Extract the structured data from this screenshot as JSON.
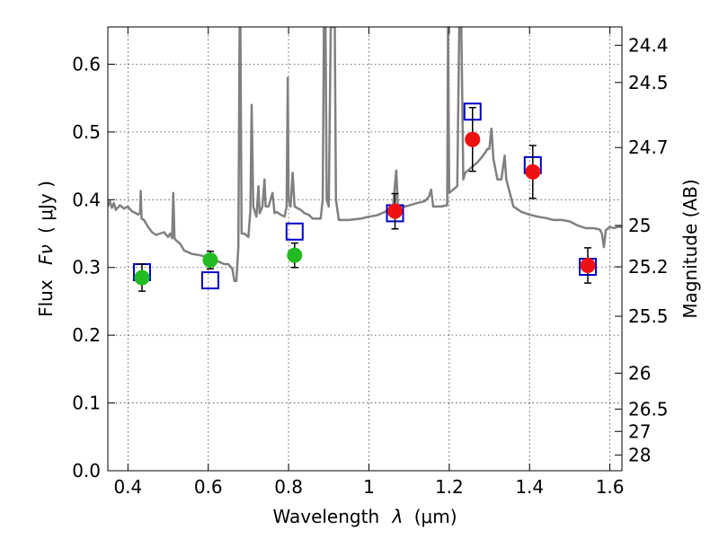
{
  "chart_data": {
    "type": "scatter",
    "title": "",
    "xlabel_text": "Wavelength",
    "xlabel_symbol": "λ",
    "xlabel_unit": "(μm)",
    "ylabel_text": "Flux",
    "ylabel_symbol": "Fν",
    "ylabel_unit": "( μJy )",
    "y2label": "Magnitude (AB)",
    "xlim": [
      0.35,
      1.63
    ],
    "ylim": [
      0.0,
      0.655
    ],
    "xticks": [
      0.4,
      0.6,
      0.8,
      1.0,
      1.2,
      1.4,
      1.6
    ],
    "xtick_labels": [
      "0.4",
      "0.6",
      "0.8",
      "1",
      "1.2",
      "1.4",
      "1.6"
    ],
    "yticks": [
      0.0,
      0.1,
      0.2,
      0.3,
      0.4,
      0.5,
      0.6
    ],
    "ytick_labels": [
      "0.0",
      "0.1",
      "0.2",
      "0.3",
      "0.4",
      "0.5",
      "0.6"
    ],
    "y2ticks": [
      {
        "label": "24.4",
        "flux": 0.628
      },
      {
        "label": "24.5",
        "flux": 0.573
      },
      {
        "label": "24.7",
        "flux": 0.477
      },
      {
        "label": "25",
        "flux": 0.362
      },
      {
        "label": "25.2",
        "flux": 0.301
      },
      {
        "label": "25.5",
        "flux": 0.228
      },
      {
        "label": "26",
        "flux": 0.144
      },
      {
        "label": "26.5",
        "flux": 0.091
      },
      {
        "label": "27",
        "flux": 0.058
      },
      {
        "label": "28",
        "flux": 0.023
      }
    ],
    "grid": true,
    "series": [
      {
        "role": "spectrum",
        "color": "#808080",
        "points": [
          [
            0.35,
            0.39
          ],
          [
            0.355,
            0.398
          ],
          [
            0.36,
            0.388
          ],
          [
            0.365,
            0.395
          ],
          [
            0.37,
            0.385
          ],
          [
            0.38,
            0.392
          ],
          [
            0.39,
            0.387
          ],
          [
            0.4,
            0.39
          ],
          [
            0.41,
            0.383
          ],
          [
            0.42,
            0.38
          ],
          [
            0.425,
            0.378
          ],
          [
            0.43,
            0.38
          ],
          [
            0.432,
            0.413
          ],
          [
            0.434,
            0.372
          ],
          [
            0.44,
            0.37
          ],
          [
            0.45,
            0.36
          ],
          [
            0.46,
            0.352
          ],
          [
            0.47,
            0.348
          ],
          [
            0.48,
            0.35
          ],
          [
            0.49,
            0.352
          ],
          [
            0.5,
            0.345
          ],
          [
            0.505,
            0.35
          ],
          [
            0.51,
            0.343
          ],
          [
            0.513,
            0.41
          ],
          [
            0.516,
            0.343
          ],
          [
            0.52,
            0.34
          ],
          [
            0.53,
            0.335
          ],
          [
            0.54,
            0.325
          ],
          [
            0.56,
            0.32
          ],
          [
            0.58,
            0.318
          ],
          [
            0.6,
            0.315
          ],
          [
            0.62,
            0.31
          ],
          [
            0.64,
            0.305
          ],
          [
            0.65,
            0.305
          ],
          [
            0.66,
            0.298
          ],
          [
            0.665,
            0.28
          ],
          [
            0.67,
            0.28
          ],
          [
            0.675,
            0.33
          ],
          [
            0.678,
            0.655
          ],
          [
            0.68,
            0.655
          ],
          [
            0.683,
            0.35
          ],
          [
            0.69,
            0.35
          ],
          [
            0.7,
            0.345
          ],
          [
            0.705,
            0.385
          ],
          [
            0.708,
            0.54
          ],
          [
            0.712,
            0.39
          ],
          [
            0.72,
            0.375
          ],
          [
            0.725,
            0.42
          ],
          [
            0.728,
            0.38
          ],
          [
            0.735,
            0.39
          ],
          [
            0.74,
            0.43
          ],
          [
            0.743,
            0.39
          ],
          [
            0.75,
            0.39
          ],
          [
            0.76,
            0.41
          ],
          [
            0.765,
            0.38
          ],
          [
            0.77,
            0.382
          ],
          [
            0.78,
            0.378
          ],
          [
            0.79,
            0.375
          ],
          [
            0.795,
            0.39
          ],
          [
            0.798,
            0.58
          ],
          [
            0.8,
            0.4
          ],
          [
            0.805,
            0.39
          ],
          [
            0.81,
            0.44
          ],
          [
            0.815,
            0.39
          ],
          [
            0.83,
            0.385
          ],
          [
            0.84,
            0.38
          ],
          [
            0.85,
            0.378
          ],
          [
            0.86,
            0.372
          ],
          [
            0.88,
            0.372
          ],
          [
            0.885,
            0.4
          ],
          [
            0.888,
            0.655
          ],
          [
            0.892,
            0.655
          ],
          [
            0.895,
            0.4
          ],
          [
            0.9,
            0.39
          ],
          [
            0.905,
            0.655
          ],
          [
            0.915,
            0.655
          ],
          [
            0.918,
            0.4
          ],
          [
            0.925,
            0.37
          ],
          [
            0.95,
            0.37
          ],
          [
            0.98,
            0.372
          ],
          [
            1.0,
            0.375
          ],
          [
            1.02,
            0.377
          ],
          [
            1.04,
            0.382
          ],
          [
            1.06,
            0.39
          ],
          [
            1.068,
            0.443
          ],
          [
            1.072,
            0.392
          ],
          [
            1.09,
            0.39
          ],
          [
            1.12,
            0.395
          ],
          [
            1.14,
            0.398
          ],
          [
            1.15,
            0.405
          ],
          [
            1.155,
            0.415
          ],
          [
            1.16,
            0.39
          ],
          [
            1.18,
            0.39
          ],
          [
            1.195,
            0.392
          ],
          [
            1.197,
            0.655
          ],
          [
            1.2,
            0.41
          ],
          [
            1.22,
            0.42
          ],
          [
            1.225,
            0.655
          ],
          [
            1.23,
            0.655
          ],
          [
            1.235,
            0.43
          ],
          [
            1.24,
            0.44
          ],
          [
            1.25,
            0.445
          ],
          [
            1.26,
            0.45
          ],
          [
            1.27,
            0.455
          ],
          [
            1.28,
            0.462
          ],
          [
            1.29,
            0.47
          ],
          [
            1.295,
            0.475
          ],
          [
            1.3,
            0.475
          ],
          [
            1.305,
            0.505
          ],
          [
            1.31,
            0.46
          ],
          [
            1.32,
            0.43
          ],
          [
            1.33,
            0.43
          ],
          [
            1.338,
            0.465
          ],
          [
            1.342,
            0.43
          ],
          [
            1.36,
            0.39
          ],
          [
            1.38,
            0.382
          ],
          [
            1.4,
            0.378
          ],
          [
            1.42,
            0.375
          ],
          [
            1.44,
            0.373
          ],
          [
            1.46,
            0.37
          ],
          [
            1.48,
            0.37
          ],
          [
            1.5,
            0.368
          ],
          [
            1.52,
            0.362
          ],
          [
            1.54,
            0.358
          ],
          [
            1.56,
            0.358
          ],
          [
            1.575,
            0.356
          ],
          [
            1.58,
            0.35
          ],
          [
            1.585,
            0.33
          ],
          [
            1.59,
            0.355
          ],
          [
            1.6,
            0.36
          ],
          [
            1.61,
            0.358
          ],
          [
            1.62,
            0.36
          ],
          [
            1.63,
            0.36
          ]
        ]
      },
      {
        "role": "model-photometry",
        "marker": "open-square",
        "color": "#0000cc",
        "points": [
          [
            0.435,
            0.293
          ],
          [
            0.605,
            0.281
          ],
          [
            0.815,
            0.353
          ],
          [
            1.065,
            0.38
          ],
          [
            1.258,
            0.53
          ],
          [
            1.408,
            0.451
          ],
          [
            1.545,
            0.301
          ]
        ]
      },
      {
        "role": "observed-optical",
        "marker": "filled-circle",
        "color": "#22bb22",
        "points": [
          {
            "x": 0.435,
            "y": 0.285,
            "err": 0.02
          },
          {
            "x": 0.605,
            "y": 0.311,
            "err": 0.013
          },
          {
            "x": 0.815,
            "y": 0.318,
            "err": 0.018
          }
        ]
      },
      {
        "role": "observed-nir",
        "marker": "filled-circle",
        "color": "#ee1111",
        "points": [
          {
            "x": 1.065,
            "y": 0.383,
            "err": 0.026
          },
          {
            "x": 1.258,
            "y": 0.489,
            "err": 0.047
          },
          {
            "x": 1.408,
            "y": 0.441,
            "err": 0.039
          },
          {
            "x": 1.545,
            "y": 0.303,
            "err": 0.026
          }
        ]
      }
    ]
  }
}
